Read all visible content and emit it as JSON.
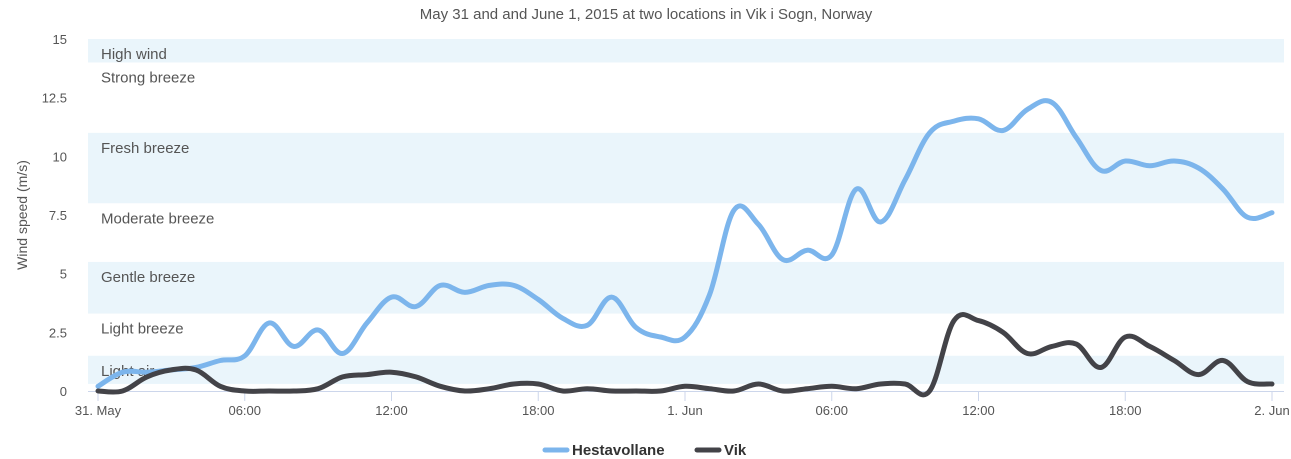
{
  "chart_data": {
    "type": "line",
    "title": "May 31 and and June 1, 2015 at two locations in Vik i Sogn, Norway",
    "ylabel": "Wind speed (m/s)",
    "xlabel": "",
    "ylim": [
      0,
      15
    ],
    "yticks": [
      "0",
      "2.5",
      "5",
      "7.5",
      "10",
      "12.5",
      "15"
    ],
    "ytick_values": [
      0,
      2.5,
      5,
      7.5,
      10,
      12.5,
      15
    ],
    "xlim": [
      0,
      48
    ],
    "xticks": [
      {
        "x": 0,
        "label": "31. May"
      },
      {
        "x": 6,
        "label": "06:00"
      },
      {
        "x": 12,
        "label": "12:00"
      },
      {
        "x": 18,
        "label": "18:00"
      },
      {
        "x": 24,
        "label": "1. Jun"
      },
      {
        "x": 30,
        "label": "06:00"
      },
      {
        "x": 36,
        "label": "12:00"
      },
      {
        "x": 42,
        "label": "18:00"
      },
      {
        "x": 48,
        "label": "2. Jun"
      }
    ],
    "bands": [
      {
        "label": "Light air",
        "from": 0.3,
        "to": 1.5,
        "shaded": true
      },
      {
        "label": "Light breeze",
        "from": 1.5,
        "to": 3.3,
        "shaded": false
      },
      {
        "label": "Gentle breeze",
        "from": 3.3,
        "to": 5.5,
        "shaded": true
      },
      {
        "label": "Moderate breeze",
        "from": 5.5,
        "to": 8,
        "shaded": false
      },
      {
        "label": "Fresh breeze",
        "from": 8,
        "to": 11,
        "shaded": true
      },
      {
        "label": "Strong breeze",
        "from": 11,
        "to": 14,
        "shaded": false
      },
      {
        "label": "High wind",
        "from": 14,
        "to": 15,
        "shaded": true
      }
    ],
    "series": [
      {
        "name": "Hestavollane",
        "color": "#7cb5ec",
        "x": [
          0,
          1,
          2,
          3,
          4,
          5,
          6,
          7,
          8,
          9,
          10,
          11,
          12,
          13,
          14,
          15,
          16,
          17,
          18,
          19,
          20,
          21,
          22,
          23,
          24,
          25,
          26,
          27,
          28,
          29,
          30,
          31,
          32,
          33,
          34,
          35,
          36,
          37,
          38,
          39,
          40,
          41,
          42,
          43,
          44,
          45,
          46,
          47,
          48
        ],
        "values": [
          0.2,
          0.8,
          0.8,
          0.9,
          1.0,
          1.3,
          1.5,
          2.9,
          1.9,
          2.6,
          1.6,
          2.9,
          4.0,
          3.6,
          4.5,
          4.2,
          4.5,
          4.5,
          3.9,
          3.1,
          2.8,
          4.0,
          2.7,
          2.3,
          2.3,
          4.1,
          7.7,
          7.1,
          5.6,
          6.0,
          5.8,
          8.6,
          7.2,
          9.0,
          11.0,
          11.5,
          11.6,
          11.1,
          12.0,
          12.3,
          10.8,
          9.4,
          9.8,
          9.6,
          9.8,
          9.5,
          8.6,
          7.4,
          7.6
        ]
      },
      {
        "name": "Vik",
        "color": "#434348",
        "x": [
          0,
          1,
          2,
          3,
          4,
          5,
          6,
          7,
          8,
          9,
          10,
          11,
          12,
          13,
          14,
          15,
          16,
          17,
          18,
          19,
          20,
          21,
          22,
          23,
          24,
          25,
          26,
          27,
          28,
          29,
          30,
          31,
          32,
          33,
          34,
          35,
          36,
          37,
          38,
          39,
          40,
          41,
          42,
          43,
          44,
          45,
          46,
          47,
          48
        ],
        "values": [
          0,
          0,
          0.6,
          0.9,
          0.9,
          0.2,
          0,
          0,
          0,
          0.1,
          0.6,
          0.7,
          0.8,
          0.6,
          0.2,
          0,
          0.1,
          0.3,
          0.3,
          0,
          0.1,
          0,
          0,
          0,
          0.2,
          0.1,
          0,
          0.3,
          0,
          0.1,
          0.2,
          0.1,
          0.3,
          0.3,
          0,
          3.0,
          3.0,
          2.5,
          1.6,
          1.9,
          2.0,
          1.0,
          2.3,
          1.9,
          1.3,
          0.7,
          1.3,
          0.4,
          0.3
        ]
      }
    ],
    "legend": "bottom-center",
    "grid": false
  }
}
